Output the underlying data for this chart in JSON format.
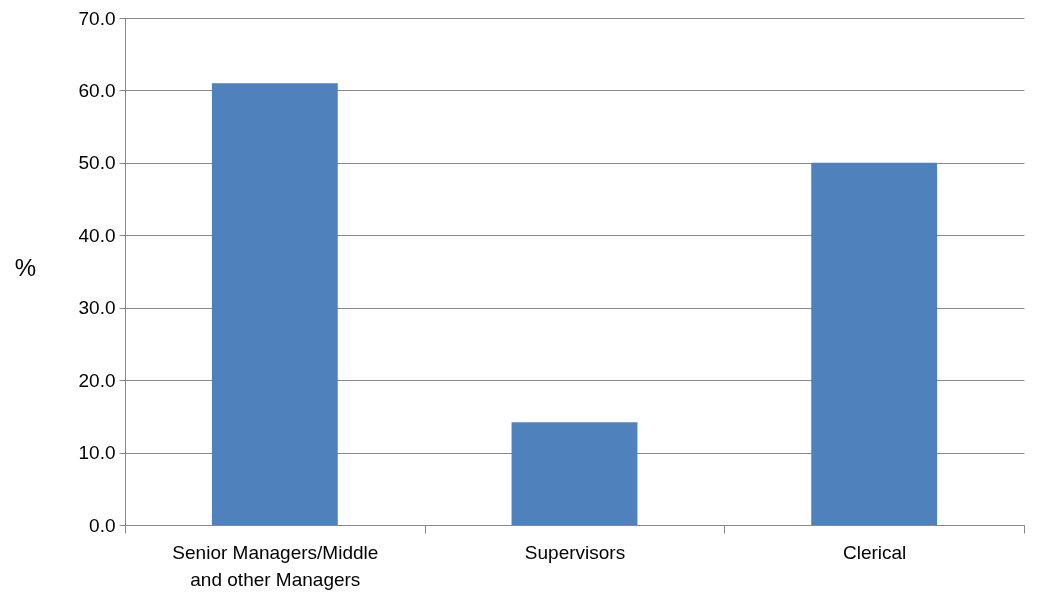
{
  "chart_data": {
    "type": "bar",
    "ylabel": "%",
    "categories": [
      "Senior Managers/Middle and other Managers",
      "Supervisors",
      "Clerical"
    ],
    "values": [
      61.0,
      14.2,
      50.0
    ],
    "color": "#4f81bd",
    "ylim": [
      0,
      70
    ],
    "yticks": [
      {
        "value": 0,
        "label": "0.0"
      },
      {
        "value": 10,
        "label": "10.0"
      },
      {
        "value": 20,
        "label": "20.0"
      },
      {
        "value": 30,
        "label": "30.0"
      },
      {
        "value": 40,
        "label": "40.0"
      },
      {
        "value": 50,
        "label": "50.0"
      },
      {
        "value": 60,
        "label": "60.0"
      },
      {
        "value": 70,
        "label": "70.0"
      }
    ],
    "grid": "y"
  }
}
